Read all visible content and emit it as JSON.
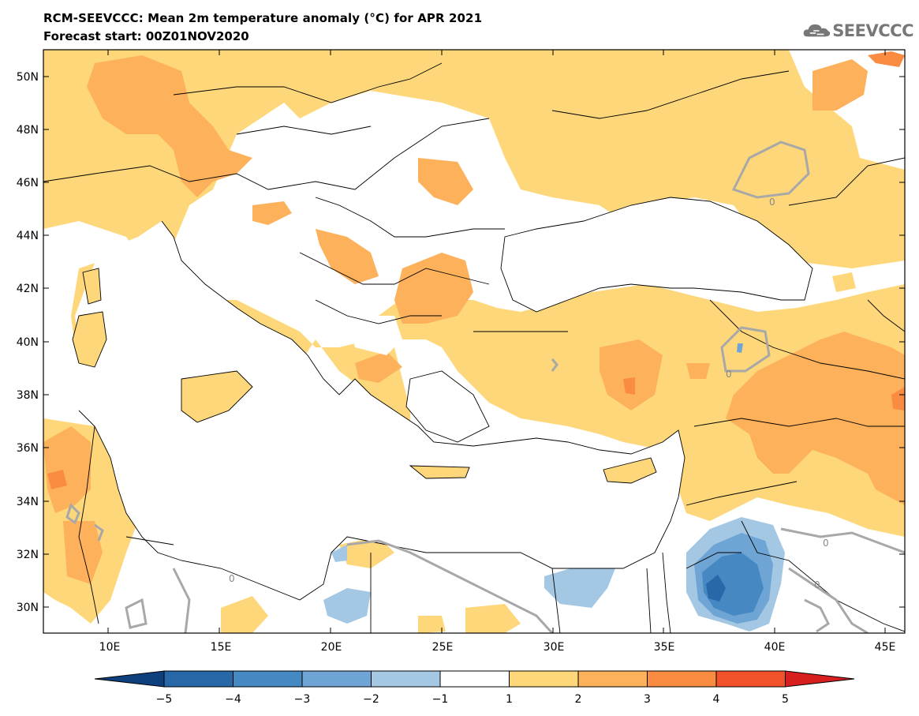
{
  "header": {
    "title": "RCM-SEEVCCC: Mean 2m temperature anomaly (°C) for APR 2021",
    "subtitle": "Forecast start: 00Z01NOV2020",
    "logo_text": "SEEVCCC"
  },
  "map": {
    "lat_labels": [
      "50N",
      "48N",
      "46N",
      "44N",
      "42N",
      "40N",
      "38N",
      "36N",
      "34N",
      "32N",
      "30N"
    ],
    "lon_labels": [
      "10E",
      "15E",
      "20E",
      "25E",
      "30E",
      "35E",
      "40E",
      "45E"
    ],
    "contour_labels": [
      "0",
      "0",
      "0",
      "0",
      "0"
    ],
    "colors": {
      "neg5": "#0d3f7d",
      "neg4": "#2867a8",
      "neg3": "#4588c2",
      "neg2": "#6ea5d4",
      "neg1": "#a4c8e4",
      "neutral": "#ffffff",
      "pos1": "#fdd779",
      "pos2": "#fdb15a",
      "pos3": "#f98c40",
      "pos4": "#f2522a",
      "pos5": "#d81f1f"
    }
  },
  "colorbar": {
    "labels": [
      "−5",
      "−4",
      "−3",
      "−2",
      "−1",
      "1",
      "2",
      "3",
      "4",
      "5"
    ]
  }
}
